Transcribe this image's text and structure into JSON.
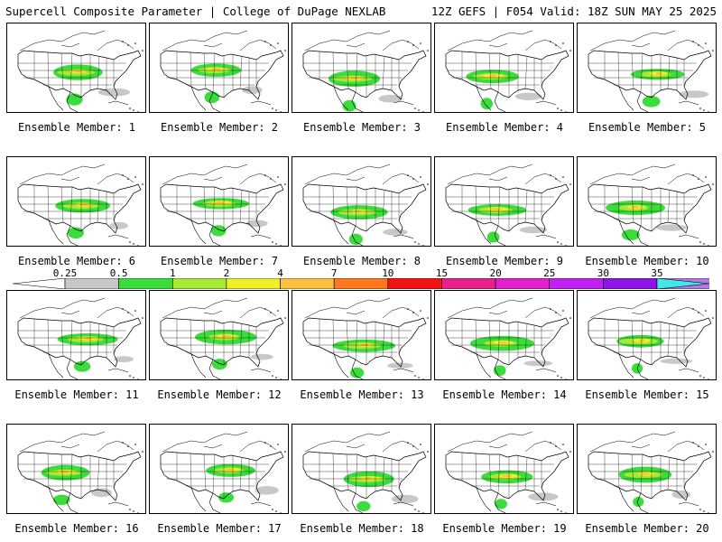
{
  "header": {
    "title": "Supercell Composite Parameter | College of DuPage NEXLAB",
    "valid": "12Z GEFS | F054 Valid: 18Z SUN MAY 25 2025"
  },
  "colorbar": {
    "levels": [
      "0.25",
      "0.5",
      "1",
      "2",
      "4",
      "7",
      "10",
      "15",
      "20",
      "25",
      "30",
      "35"
    ],
    "colors": [
      "#c8c8c8",
      "#3cdc3c",
      "#a8e838",
      "#f0f028",
      "#ffc040",
      "#ff7820",
      "#f01414",
      "#e8208c",
      "#e020c8",
      "#c020f0",
      "#8c14e6",
      "#b478e6",
      "#40e8e8"
    ]
  },
  "panels": [
    {
      "label": "Ensemble Member: 1"
    },
    {
      "label": "Ensemble Member: 2"
    },
    {
      "label": "Ensemble Member: 3"
    },
    {
      "label": "Ensemble Member: 4"
    },
    {
      "label": "Ensemble Member: 5"
    },
    {
      "label": "Ensemble Member: 6"
    },
    {
      "label": "Ensemble Member: 7"
    },
    {
      "label": "Ensemble Member: 8"
    },
    {
      "label": "Ensemble Member: 9"
    },
    {
      "label": "Ensemble Member: 10"
    },
    {
      "label": "Ensemble Member: 11"
    },
    {
      "label": "Ensemble Member: 12"
    },
    {
      "label": "Ensemble Member: 13"
    },
    {
      "label": "Ensemble Member: 14"
    },
    {
      "label": "Ensemble Member: 15"
    },
    {
      "label": "Ensemble Member: 16"
    },
    {
      "label": "Ensemble Member: 17"
    },
    {
      "label": "Ensemble Member: 18"
    },
    {
      "label": "Ensemble Member: 19"
    },
    {
      "label": "Ensemble Member: 20"
    }
  ]
}
